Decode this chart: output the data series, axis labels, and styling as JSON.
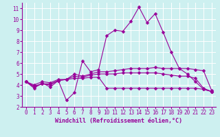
{
  "xlabel": "Windchill (Refroidissement éolien,°C)",
  "background_color": "#cdf0f0",
  "grid_color": "#ffffff",
  "line_color": "#990099",
  "xlim": [
    -0.5,
    23.5
  ],
  "ylim": [
    2,
    11.5
  ],
  "yticks": [
    2,
    3,
    4,
    5,
    6,
    7,
    8,
    9,
    10,
    11
  ],
  "xticks": [
    0,
    1,
    2,
    3,
    4,
    5,
    6,
    7,
    8,
    9,
    10,
    11,
    12,
    13,
    14,
    15,
    16,
    17,
    18,
    19,
    20,
    21,
    22,
    23
  ],
  "series": [
    [
      4.3,
      3.7,
      4.2,
      3.8,
      4.4,
      2.6,
      3.3,
      6.2,
      5.2,
      5.4,
      8.5,
      9.0,
      8.9,
      9.8,
      11.1,
      9.7,
      10.5,
      8.8,
      7.0,
      5.5,
      5.0,
      4.3,
      3.6,
      3.4
    ],
    [
      4.3,
      3.8,
      4.1,
      4.0,
      4.4,
      4.5,
      5.0,
      4.8,
      5.0,
      5.2,
      5.2,
      5.3,
      5.4,
      5.5,
      5.5,
      5.5,
      5.6,
      5.5,
      5.5,
      5.5,
      5.5,
      5.4,
      5.3,
      3.5
    ],
    [
      4.3,
      3.9,
      4.1,
      4.1,
      4.4,
      4.5,
      4.8,
      4.7,
      4.9,
      5.0,
      5.0,
      5.0,
      5.1,
      5.1,
      5.1,
      5.1,
      5.1,
      5.0,
      4.9,
      4.8,
      4.8,
      4.6,
      3.7,
      3.4
    ],
    [
      4.3,
      4.0,
      4.3,
      4.2,
      4.5,
      4.5,
      4.6,
      4.6,
      4.7,
      4.7,
      3.7,
      3.7,
      3.7,
      3.7,
      3.7,
      3.7,
      3.7,
      3.7,
      3.7,
      3.7,
      3.7,
      3.7,
      3.6,
      3.4
    ]
  ],
  "marker_size": 2.5,
  "linewidth": 0.8,
  "tick_fontsize": 5.5,
  "xlabel_fontsize": 6.0
}
